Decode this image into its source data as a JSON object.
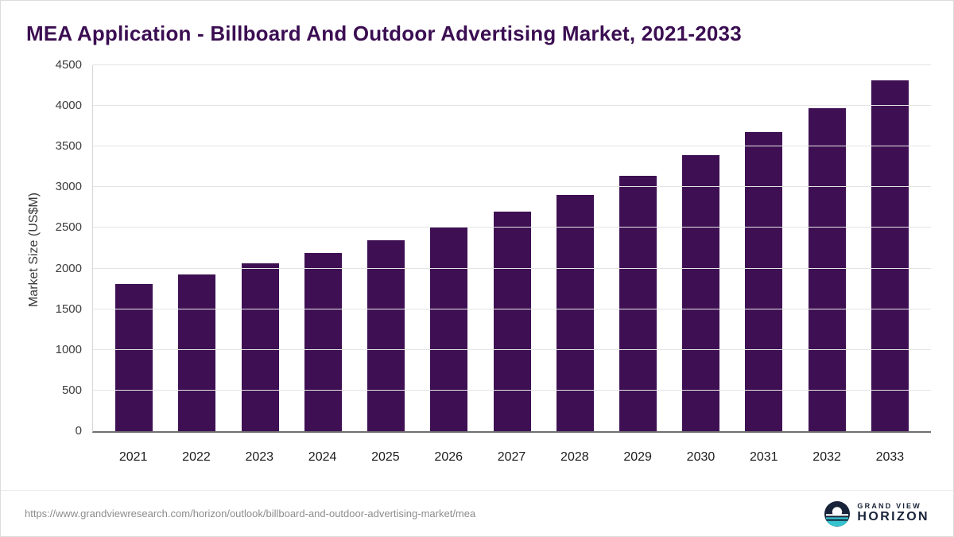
{
  "chart_data": {
    "type": "bar",
    "title": "MEA Application - Billboard And Outdoor Advertising Market, 2021-2033",
    "xlabel": "",
    "ylabel": "Market Size (US$M)",
    "categories": [
      "2021",
      "2022",
      "2023",
      "2024",
      "2025",
      "2026",
      "2027",
      "2028",
      "2029",
      "2030",
      "2031",
      "2032",
      "2033"
    ],
    "values": [
      1810,
      1930,
      2060,
      2195,
      2345,
      2515,
      2705,
      2910,
      3145,
      3395,
      3675,
      3975,
      4310
    ],
    "ylim": [
      0,
      4500
    ],
    "ytick_step": 500,
    "grid": true,
    "legend": "none",
    "bar_color": "#3e1053"
  },
  "footer": {
    "source_url": "https://www.grandviewresearch.com/horizon/outlook/billboard-and-outdoor-advertising-market/mea",
    "brand_top": "GRAND VIEW",
    "brand_bottom": "HORIZON"
  },
  "colors": {
    "title_text": "#3b0e52",
    "bar": "#3e1053",
    "logo_navy": "#182239",
    "logo_teal": "#35c3cf"
  }
}
